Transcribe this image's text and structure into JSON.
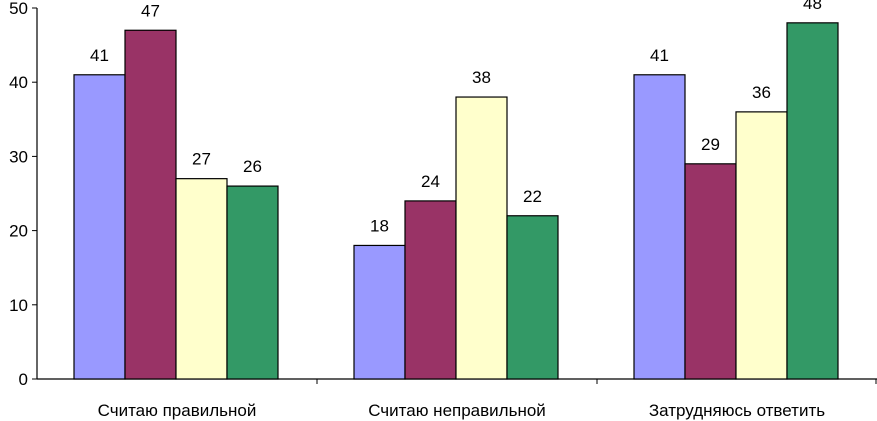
{
  "chart_data": {
    "type": "bar",
    "categories": [
      "Считаю правильной",
      "Считаю неправильной",
      "Затрудняюсь ответить"
    ],
    "series": [
      {
        "values": [
          41,
          18,
          41
        ],
        "color": "#9999ff"
      },
      {
        "values": [
          47,
          24,
          29
        ],
        "color": "#993366"
      },
      {
        "values": [
          27,
          38,
          36
        ],
        "color": "#ffffcc"
      },
      {
        "values": [
          26,
          22,
          48
        ],
        "color": "#339966"
      }
    ],
    "yticks": [
      0,
      10,
      20,
      30,
      40,
      50
    ],
    "ylim": [
      0,
      50
    ],
    "grid": false,
    "legend": false,
    "data_labels": true
  }
}
